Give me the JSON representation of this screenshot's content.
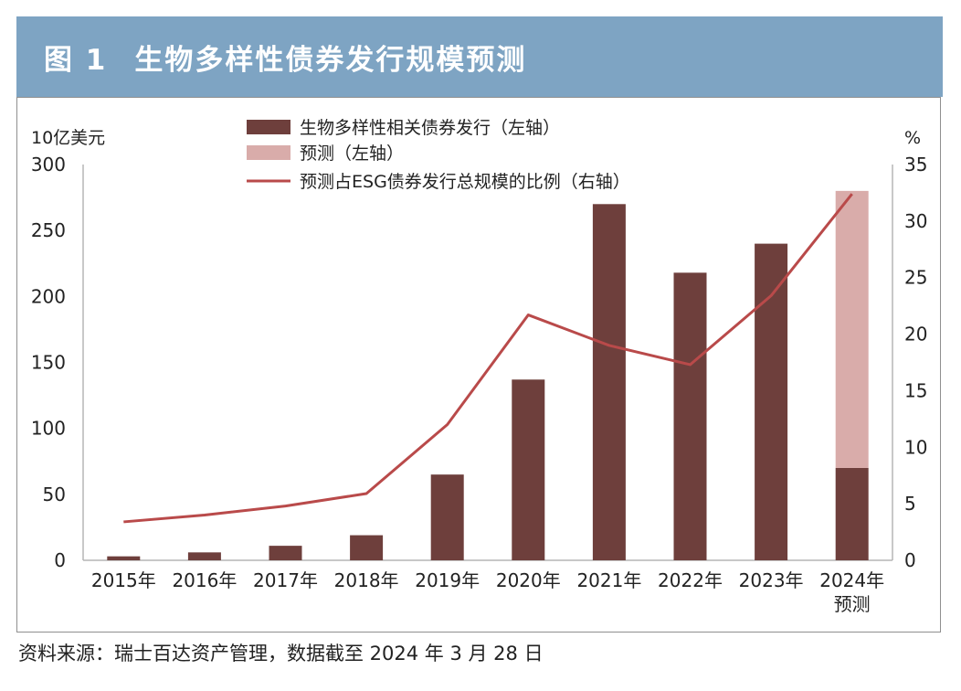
{
  "header": {
    "figure_label": "图 1",
    "title": "生物多样性债券发行规模预测"
  },
  "source": "资料来源：瑞士百达资产管理，数据截至 2024 年 3 月 28 日",
  "colors": {
    "header_bg": "#7ea4c3",
    "bar": "#6e3f3c",
    "forecast": "#d9acaa",
    "line": "#b94a4a"
  },
  "chart_data": {
    "type": "bar",
    "categories": [
      "2015年",
      "2016年",
      "2017年",
      "2018年",
      "2019年",
      "2020年",
      "2021年",
      "2022年",
      "2023年",
      "2024年\n预测"
    ],
    "y_left_label": "10亿美元",
    "y_right_label": "%",
    "y_left_range": [
      0,
      300
    ],
    "y_left_ticks": [
      0,
      50,
      100,
      150,
      200,
      250,
      300
    ],
    "y_right_range": [
      0,
      35
    ],
    "y_right_ticks": [
      0,
      5,
      10,
      15,
      20,
      25,
      30,
      35
    ],
    "series": [
      {
        "name": "生物多样性相关债券发行（左轴）",
        "axis": "left",
        "type": "bar",
        "values": [
          3,
          6,
          11,
          19,
          65,
          137,
          270,
          218,
          240,
          70
        ]
      },
      {
        "name": "预测（左轴）",
        "axis": "left",
        "type": "bar-stacked",
        "values": [
          0,
          0,
          0,
          0,
          0,
          0,
          0,
          0,
          0,
          210
        ]
      },
      {
        "name": "预测占ESG债券发行总规模的比例（右轴）",
        "axis": "right",
        "type": "line",
        "values": [
          3.4,
          4.0,
          4.8,
          5.9,
          12.0,
          21.7,
          19.0,
          17.3,
          23.4,
          32.4
        ]
      }
    ],
    "legend_position": "top-center",
    "grid": false
  }
}
